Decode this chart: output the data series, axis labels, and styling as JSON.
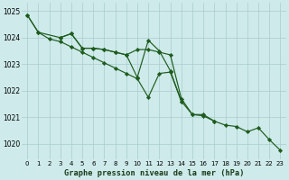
{
  "title": "Graphe pression niveau de la mer (hPa)",
  "background_color": "#ceeaea",
  "grid_color": "#aacccc",
  "line_color": "#1e5c1e",
  "yticks": [
    1020,
    1021,
    1022,
    1023,
    1024,
    1025
  ],
  "ylim": [
    1019.4,
    1025.3
  ],
  "xlim": [
    -0.5,
    23.5
  ],
  "line1_x": [
    0,
    1,
    3,
    4,
    5,
    6,
    7,
    8,
    9,
    10,
    11,
    12,
    13,
    14,
    15,
    16,
    17
  ],
  "line1_y": [
    1024.85,
    1024.2,
    1024.0,
    1024.15,
    1023.6,
    1023.6,
    1023.55,
    1023.45,
    1023.35,
    1023.55,
    1023.55,
    1023.45,
    1023.35,
    1021.7,
    1021.1,
    1021.1,
    1020.85
  ],
  "line2_x": [
    3,
    4,
    5,
    6,
    7,
    8,
    9,
    10,
    11,
    12,
    13,
    14
  ],
  "line2_y": [
    1024.0,
    1024.15,
    1023.6,
    1023.6,
    1023.55,
    1023.45,
    1023.35,
    1022.5,
    1023.9,
    1023.5,
    1022.75,
    1021.6
  ],
  "line3_x": [
    0,
    1,
    2,
    3,
    4,
    5,
    6,
    7,
    8,
    9,
    10,
    11,
    12,
    13,
    14,
    15,
    16,
    17,
    18,
    19,
    20,
    21,
    22,
    23
  ],
  "line3_y": [
    1024.85,
    1024.2,
    1023.95,
    1023.85,
    1023.65,
    1023.45,
    1023.25,
    1023.05,
    1022.85,
    1022.65,
    1022.45,
    1021.75,
    1022.65,
    1022.7,
    1021.6,
    1021.1,
    1021.05,
    1020.85,
    1020.7,
    1020.65,
    1020.45,
    1020.6,
    1020.15,
    1019.75
  ],
  "marker": "D",
  "markersize": 2.2,
  "linewidth": 0.85
}
